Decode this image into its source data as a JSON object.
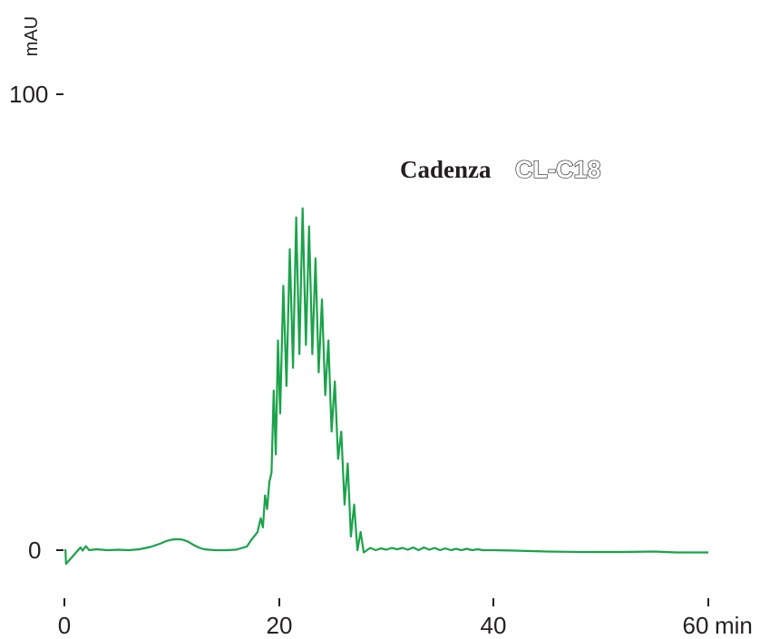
{
  "chart_data": {
    "type": "line",
    "title_brand": "Cadenza",
    "title_model": "CL-C18",
    "ylabel": "mAU",
    "xunit": "min",
    "xlim": [
      0,
      60
    ],
    "ylim": [
      0,
      100
    ],
    "x_ticks": [
      "0",
      "20",
      "40",
      "60"
    ],
    "y_ticks": [
      "0",
      "100"
    ],
    "line_color": "#1aa34a",
    "series": [
      {
        "x": [
          0,
          0.1,
          0.15,
          1.5,
          1.7,
          2.0,
          2.3,
          3,
          4,
          5,
          6,
          7,
          8,
          9,
          9.5,
          10,
          10.5,
          11,
          11.5,
          12,
          12.5,
          13,
          14,
          15,
          16,
          17,
          17.5,
          18,
          18.3,
          18.5,
          18.7,
          18.9,
          19.1,
          19.3,
          19.5,
          19.7,
          19.9,
          20.1,
          20.4,
          20.7,
          21.0,
          21.3,
          21.6,
          21.9,
          22.2,
          22.5,
          22.8,
          23.1,
          23.4,
          23.7,
          24.0,
          24.3,
          24.6,
          24.9,
          25.2,
          25.5,
          25.8,
          26.1,
          26.4,
          26.7,
          27.0,
          27.3,
          27.6,
          27.9,
          28.5,
          29,
          29.5,
          30,
          30.5,
          31,
          31.5,
          32,
          32.5,
          33,
          33.5,
          34,
          34.5,
          35,
          35.5,
          36,
          36.5,
          37,
          37.5,
          38,
          38.5,
          39,
          40,
          42,
          45,
          48,
          50,
          52,
          55,
          57,
          60
        ],
        "values": [
          0,
          0,
          -3,
          0.6,
          -0.1,
          0.9,
          0,
          0.2,
          0,
          0.1,
          0,
          0.2,
          0.7,
          1.5,
          2.0,
          2.3,
          2.4,
          2.3,
          1.9,
          1.2,
          0.6,
          0.2,
          0,
          0,
          0.1,
          0.8,
          2.5,
          4,
          7,
          5,
          12,
          9,
          15,
          17,
          35,
          21,
          46,
          30,
          58,
          36,
          66,
          40,
          73,
          43,
          75,
          45,
          71,
          43,
          64,
          39,
          55,
          34,
          46,
          26,
          37,
          20,
          26,
          10,
          19,
          3,
          10,
          0,
          4,
          -0.5,
          0.5,
          0,
          0.4,
          0.1,
          0.5,
          0.2,
          0.5,
          0.1,
          0.6,
          0,
          0.6,
          0.1,
          0.5,
          0,
          0.4,
          0,
          0.3,
          0,
          0.3,
          0,
          0.2,
          0,
          0,
          -0.1,
          -0.3,
          -0.4,
          -0.4,
          -0.4,
          -0.3,
          -0.5,
          -0.5
        ]
      }
    ]
  }
}
